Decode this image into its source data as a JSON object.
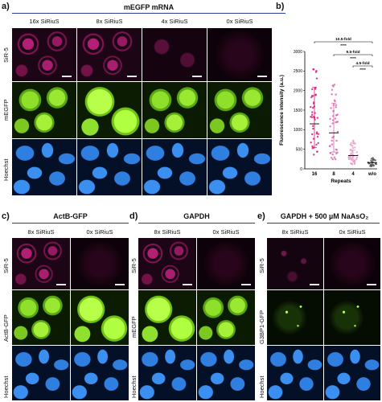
{
  "panel_a": {
    "letter": "a)",
    "title": "mEGFP mRNA",
    "columns": [
      "16x SiRiuS",
      "8x SiRiuS",
      "4x SiRiuS",
      "0x SiRiuS"
    ],
    "rows": [
      "SiR-5",
      "mEGFP",
      "Hoechst"
    ]
  },
  "panel_c": {
    "letter": "c)",
    "title": "ActB-GFP",
    "columns": [
      "8x SiRiuS",
      "0x SiRiuS"
    ],
    "rows": [
      "SiR-5",
      "ActB-GFP",
      "Hoechst"
    ]
  },
  "panel_d": {
    "letter": "d)",
    "title": "GAPDH",
    "columns": [
      "8x SiRiuS",
      "0x SiRiuS"
    ],
    "rows": [
      "SiR-5",
      "mEGFP",
      "Hoechst"
    ]
  },
  "panel_e": {
    "letter": "e)",
    "title": "GAPDH + 500 µM NaAsO₂",
    "columns": [
      "8x SiRiuS",
      "0x SiRiuS"
    ],
    "rows": [
      "SiR-5",
      "G3BP1-GFP",
      "Hoechst"
    ]
  },
  "panel_b": {
    "letter": "b)"
  },
  "chart_data": {
    "type": "scatter",
    "ylabel": "Fluorescence intensity (a.u.)",
    "xlabel": "Repeats",
    "categories": [
      "16",
      "8",
      "4",
      "w/o"
    ],
    "ylim": [
      0,
      3000
    ],
    "yticks": [
      0,
      500,
      1000,
      1500,
      2000,
      2500,
      3000
    ],
    "means": [
      1150,
      920,
      340,
      160
    ],
    "sd_low": [
      550,
      430,
      230,
      100
    ],
    "sd_high": [
      2080,
      1680,
      480,
      220
    ],
    "range_min": [
      250,
      230,
      110,
      60
    ],
    "range_max": [
      2650,
      2350,
      740,
      290
    ],
    "colors": [
      "#d81b7a",
      "#e060a8",
      "#eaa0cc",
      "#555555"
    ],
    "annotations": [
      {
        "label": "10.5-fold",
        "stars": "****",
        "from": "16",
        "to": "w/o"
      },
      {
        "label": "9.5-fold",
        "stars": "****",
        "from": "8",
        "to": "w/o"
      },
      {
        "label": "4.5-fold",
        "stars": "****",
        "from": "4",
        "to": "w/o"
      }
    ]
  }
}
